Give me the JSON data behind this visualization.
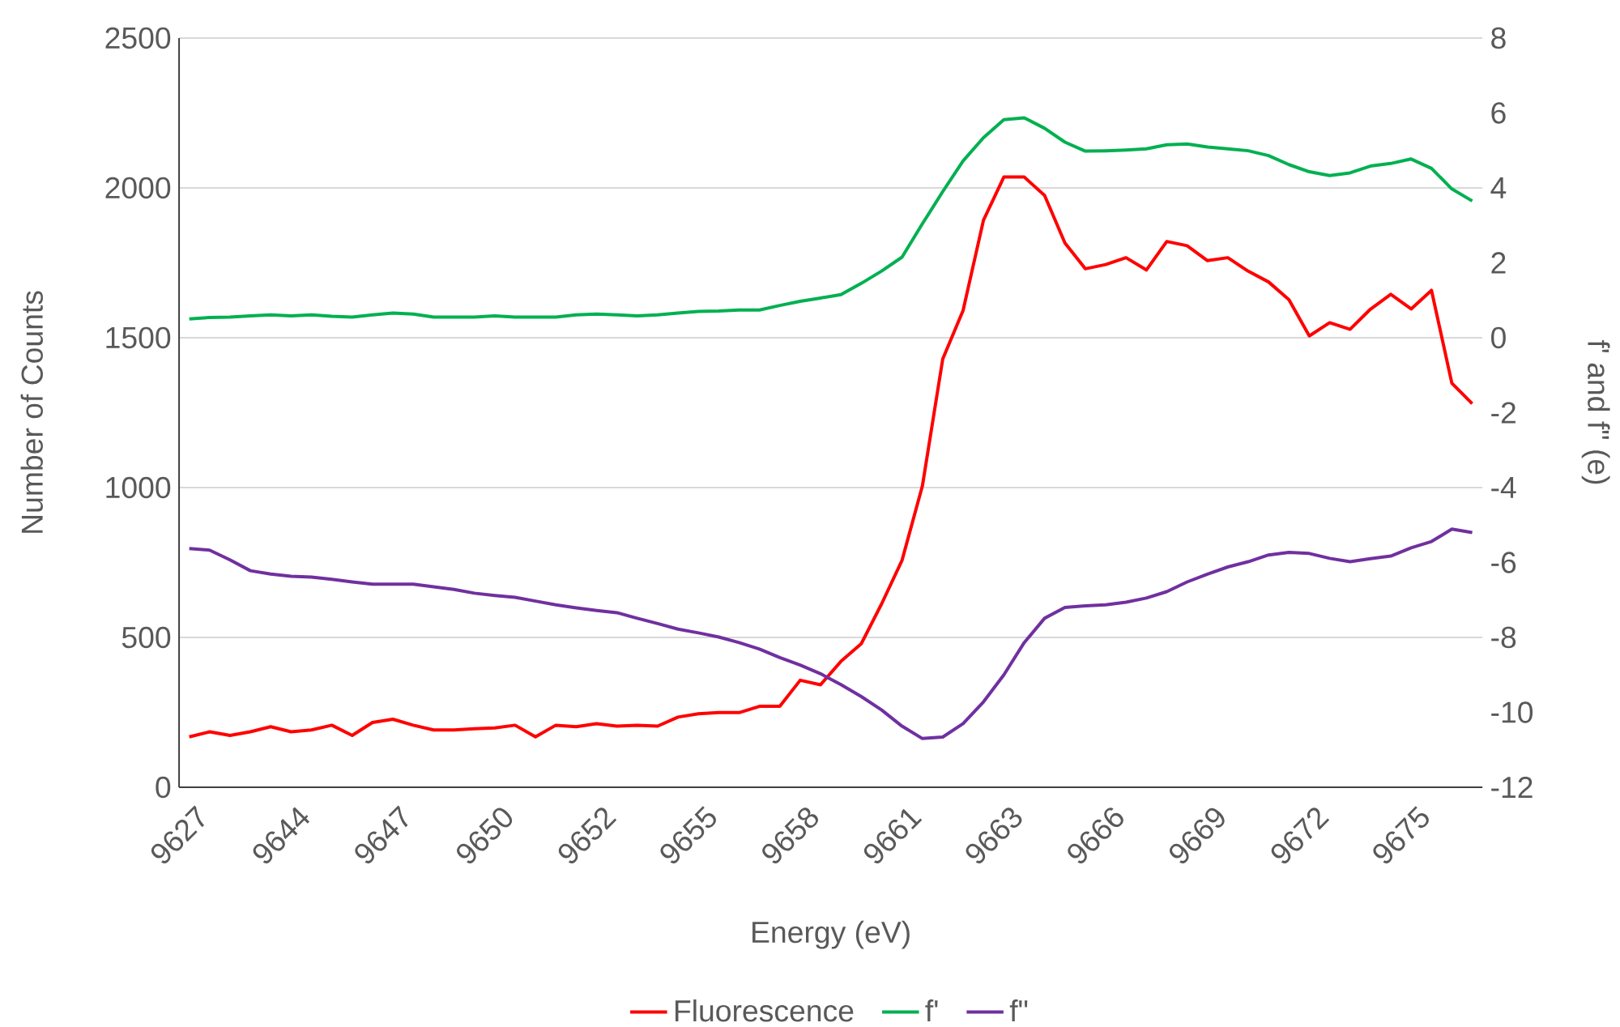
{
  "chart_data": {
    "type": "line",
    "xlabel": "Energy (eV)",
    "ylabel": "Number of Counts",
    "y2label": "f' and f\" (e)",
    "categories": [
      "9627",
      null,
      null,
      null,
      null,
      "9644",
      null,
      null,
      null,
      null,
      "9647",
      null,
      null,
      null,
      null,
      "9650",
      null,
      null,
      null,
      null,
      "9652",
      null,
      null,
      null,
      null,
      "9655",
      null,
      null,
      null,
      null,
      "9658",
      null,
      null,
      null,
      null,
      "9661",
      null,
      null,
      null,
      null,
      "9663",
      null,
      null,
      null,
      null,
      "9666",
      null,
      null,
      null,
      null,
      "9669",
      null,
      null,
      null,
      null,
      "9672",
      null,
      null,
      null,
      null,
      "9675",
      null,
      null,
      null
    ],
    "series": [
      {
        "name": "Fluorescence",
        "color": "#ff0000",
        "values": [
          168,
          185,
          173,
          185,
          202,
          185,
          191,
          207,
          173,
          216,
          227,
          207,
          191,
          191,
          195,
          198,
          207,
          168,
          207,
          202,
          212,
          204,
          207,
          204,
          234,
          245,
          249,
          249,
          270,
          270,
          357,
          342,
          420,
          479,
          612,
          757,
          1005,
          1429,
          1591,
          1892,
          2036,
          2036,
          1975,
          1816,
          1730,
          1744,
          1767,
          1726,
          1821,
          1807,
          1757,
          1767,
          1722,
          1686,
          1627,
          1506,
          1550,
          1528,
          1595,
          1645,
          1596,
          1658,
          1348,
          1280
        ]
      },
      {
        "name": "f'",
        "color": "#00b050",
        "axis": "y2",
        "values": [
          0.5,
          0.54,
          0.55,
          0.58,
          0.61,
          0.58,
          0.61,
          0.57,
          0.55,
          0.61,
          0.66,
          0.63,
          0.55,
          0.55,
          0.55,
          0.58,
          0.55,
          0.55,
          0.55,
          0.61,
          0.63,
          0.61,
          0.58,
          0.61,
          0.66,
          0.7,
          0.71,
          0.74,
          0.74,
          0.86,
          0.97,
          1.06,
          1.15,
          1.45,
          1.78,
          2.15,
          3.04,
          3.9,
          4.72,
          5.34,
          5.82,
          5.87,
          5.59,
          5.22,
          4.98,
          4.99,
          5.01,
          5.04,
          5.15,
          5.17,
          5.09,
          5.04,
          4.99,
          4.86,
          4.62,
          4.43,
          4.33,
          4.4,
          4.58,
          4.65,
          4.77,
          4.52,
          3.97,
          3.65
        ]
      },
      {
        "name": "f\"",
        "color": "#7030a0",
        "axis": "y2",
        "values": [
          -5.63,
          -5.67,
          -5.93,
          -6.22,
          -6.31,
          -6.37,
          -6.39,
          -6.45,
          -6.52,
          -6.58,
          -6.58,
          -6.58,
          -6.65,
          -6.72,
          -6.82,
          -6.88,
          -6.93,
          -7.03,
          -7.13,
          -7.21,
          -7.28,
          -7.34,
          -7.49,
          -7.63,
          -7.78,
          -7.88,
          -7.99,
          -8.14,
          -8.31,
          -8.54,
          -8.74,
          -8.97,
          -9.26,
          -9.58,
          -9.94,
          -10.37,
          -10.7,
          -10.66,
          -10.3,
          -9.72,
          -9.0,
          -8.14,
          -7.49,
          -7.2,
          -7.16,
          -7.13,
          -7.06,
          -6.95,
          -6.78,
          -6.52,
          -6.31,
          -6.12,
          -5.98,
          -5.8,
          -5.73,
          -5.76,
          -5.89,
          -5.98,
          -5.9,
          -5.83,
          -5.61,
          -5.44,
          -5.11,
          -5.2
        ]
      }
    ],
    "ylim": [
      0,
      2500
    ],
    "yticks": [
      0,
      500,
      1000,
      1500,
      2000,
      2500
    ],
    "y2lim": [
      -12,
      8
    ],
    "y2ticks": [
      -12,
      -10,
      -8,
      -6,
      -4,
      -2,
      0,
      2,
      4,
      6,
      8
    ],
    "grid": "y",
    "legend": "bottom",
    "marker": "none",
    "line_style": "solid"
  }
}
